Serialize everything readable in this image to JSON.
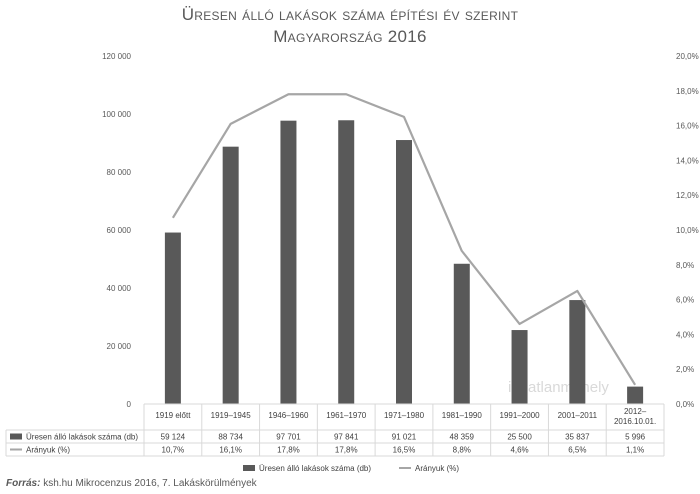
{
  "title_line1": "Üresen álló lakások száma építési év szerint",
  "title_line2": "Magyarország 2016",
  "source_label": "Forrás:",
  "source_text": "ksh.hu Mikrocenzus 2016, 7. Lakáskörülmények",
  "watermark": "ingatlanműhely",
  "colors": {
    "bar": "#595959",
    "line": "#a6a6a6",
    "grid": "#d9d9d9",
    "text": "#595959"
  },
  "chart_data": {
    "type": "bar",
    "title": "Üresen álló lakások száma építési év szerint – Magyarország 2016",
    "categories": [
      "1919 előtt",
      "1919–1945",
      "1946–1960",
      "1961–1970",
      "1971–1980",
      "1981–1990",
      "1991–2000",
      "2001–2011",
      "2012–2016.10.01."
    ],
    "category_lines": [
      [
        "1919 előtt"
      ],
      [
        "1919–1945"
      ],
      [
        "1946–1960"
      ],
      [
        "1961–1970"
      ],
      [
        "1971–1980"
      ],
      [
        "1981–1990"
      ],
      [
        "1991–2000"
      ],
      [
        "2001–2011"
      ],
      [
        "2012–",
        "2016.10.01."
      ]
    ],
    "series": [
      {
        "name": "Üresen álló lakások száma (db)",
        "type": "bar",
        "axis": "left",
        "values": [
          59124,
          88734,
          97701,
          97841,
          91021,
          48359,
          25500,
          35837,
          5996
        ],
        "labels": [
          "59 124",
          "88 734",
          "97 701",
          "97 841",
          "91 021",
          "48 359",
          "25 500",
          "35 837",
          "5 996"
        ]
      },
      {
        "name": "Arányuk (%)",
        "type": "line",
        "axis": "right",
        "values": [
          10.7,
          16.1,
          17.8,
          17.8,
          16.5,
          8.8,
          4.6,
          6.5,
          1.1
        ],
        "labels": [
          "10,7%",
          "16,1%",
          "17,8%",
          "17,8%",
          "16,5%",
          "8,8%",
          "4,6%",
          "6,5%",
          "1,1%"
        ]
      }
    ],
    "y_left": {
      "min": 0,
      "max": 120000,
      "step": 20000,
      "tick_labels": [
        "0",
        "20 000",
        "40 000",
        "60 000",
        "80 000",
        "100 000",
        "120 000"
      ]
    },
    "y_right": {
      "min": 0,
      "max": 20,
      "step": 2,
      "tick_labels": [
        "0,0%",
        "2,0%",
        "4,0%",
        "6,0%",
        "8,0%",
        "10,0%",
        "12,0%",
        "14,0%",
        "16,0%",
        "18,0%",
        "20,0%"
      ]
    },
    "grid": false,
    "legend_position": "bottom-center",
    "data_table": true
  }
}
